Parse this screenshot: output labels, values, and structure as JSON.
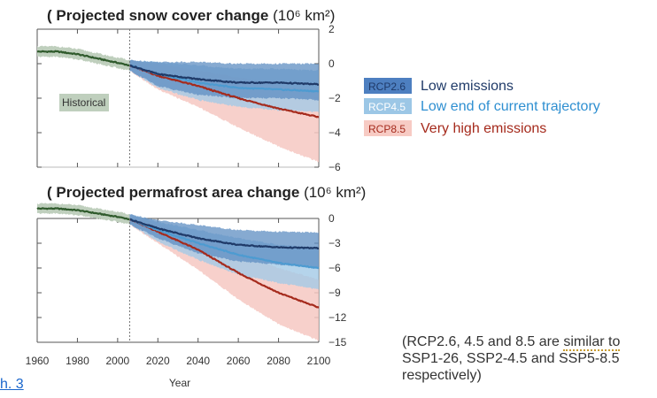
{
  "colors": {
    "rcp26": "#1f3a68",
    "rcp26_band": "#5d8ec2",
    "rcp45": "#4d9bd1",
    "rcp45_band": "#a3c9e6",
    "rcp85": "#a52a1c",
    "rcp85_band": "#f6c8c2",
    "historical": "#2f5a2c",
    "historical_band": "#bfcfbd"
  },
  "legend": [
    {
      "code": "RCP2.6",
      "label": "Low emissions",
      "code_bg": "#4d7fc0",
      "code_color": "#1f3a68",
      "label_color": "#1f3a68"
    },
    {
      "code": "RCP4.5",
      "label": "Low end of current trajectory",
      "code_bg": "#9cc7e6",
      "code_color": "#ffffff",
      "label_color": "#2e8fd1"
    },
    {
      "code": "RCP8.5",
      "label": "Very high emissions",
      "code_bg": "#f7cbc4",
      "code_color": "#a52a1c",
      "label_color": "#a52a1c"
    }
  ],
  "note": {
    "line1": "(RCP2.6, 4.5 and 8.5 are ",
    "dotted": "similar to",
    "line2": "SSP1-26, SSP2-4.5 and SSP5-8.5",
    "line3": "respectively)"
  },
  "link_text": "h. 3",
  "chart_data": [
    {
      "type": "line",
      "title": "Projected snow cover change",
      "title_prefix": "(",
      "unit": "(10⁶ km²)",
      "xlabel": "",
      "ylabel": "",
      "ylim": [
        -6,
        2
      ],
      "yticks": [
        "2",
        "0",
        "−2",
        "−4",
        "−6"
      ],
      "xlim": [
        1960,
        2100
      ],
      "historical_label": "Historical",
      "historical_end": 2006,
      "series": [
        {
          "name": "Historical",
          "x": [
            1960,
            1970,
            1980,
            1990,
            2000,
            2006
          ],
          "y": [
            0.7,
            0.7,
            0.55,
            0.3,
            0.05,
            -0.1
          ],
          "lo": [
            0.4,
            0.4,
            0.25,
            0.0,
            -0.25,
            -0.4
          ],
          "hi": [
            1.0,
            1.0,
            0.85,
            0.6,
            0.35,
            0.2
          ]
        },
        {
          "name": "RCP2.6",
          "x": [
            2006,
            2020,
            2040,
            2060,
            2080,
            2100
          ],
          "y": [
            -0.1,
            -0.6,
            -0.9,
            -1.1,
            -1.1,
            -1.2
          ],
          "lo": [
            -0.4,
            -1.3,
            -1.8,
            -2.0,
            -2.0,
            -2.1
          ],
          "hi": [
            0.2,
            0.1,
            0.1,
            0.0,
            0.0,
            0.0
          ]
        },
        {
          "name": "RCP4.5",
          "x": [
            2006,
            2020,
            2040,
            2060,
            2080,
            2100
          ],
          "y": [
            -0.1,
            -0.6,
            -1.1,
            -1.4,
            -1.5,
            -1.6
          ],
          "lo": [
            -0.4,
            -1.4,
            -2.1,
            -2.5,
            -2.7,
            -2.8
          ],
          "hi": [
            0.2,
            0.1,
            -0.1,
            -0.3,
            -0.3,
            -0.4
          ]
        },
        {
          "name": "RCP8.5",
          "x": [
            2006,
            2020,
            2040,
            2060,
            2080,
            2100
          ],
          "y": [
            -0.1,
            -0.7,
            -1.3,
            -2.0,
            -2.6,
            -3.1
          ],
          "lo": [
            -0.4,
            -1.5,
            -2.5,
            -3.7,
            -4.8,
            -5.7
          ],
          "hi": [
            0.2,
            0.0,
            -0.4,
            -0.8,
            -1.2,
            -1.6
          ]
        }
      ]
    },
    {
      "type": "line",
      "title": "Projected permafrost area change",
      "title_prefix": "(",
      "unit": "(10⁶ km²)",
      "xlabel": "Year",
      "ylabel": "",
      "ylim": [
        -15,
        0
      ],
      "yticks": [
        "0",
        "−3",
        "−6",
        "−9",
        "−12",
        "−15"
      ],
      "xticks": [
        "1960",
        "1980",
        "2000",
        "2020",
        "2040",
        "2060",
        "2080",
        "2100"
      ],
      "xlim": [
        1960,
        2100
      ],
      "historical_end": 2006,
      "series": [
        {
          "name": "Historical",
          "x": [
            1960,
            1970,
            1980,
            1990,
            2000,
            2006
          ],
          "y": [
            1.2,
            1.2,
            1.0,
            0.6,
            0.2,
            -0.1
          ],
          "lo": [
            0.6,
            0.6,
            0.4,
            0.0,
            -0.4,
            -0.7
          ],
          "hi": [
            1.8,
            1.8,
            1.6,
            1.2,
            0.8,
            0.5
          ]
        },
        {
          "name": "RCP2.6",
          "x": [
            2006,
            2020,
            2040,
            2060,
            2080,
            2100
          ],
          "y": [
            -0.1,
            -1.2,
            -2.4,
            -3.2,
            -3.5,
            -3.6
          ],
          "lo": [
            -0.7,
            -2.4,
            -4.2,
            -5.2,
            -5.6,
            -5.9
          ],
          "hi": [
            0.5,
            -0.2,
            -0.8,
            -1.4,
            -1.6,
            -1.7
          ]
        },
        {
          "name": "RCP4.5",
          "x": [
            2006,
            2020,
            2040,
            2060,
            2080,
            2100
          ],
          "y": [
            -0.1,
            -1.4,
            -3.0,
            -4.4,
            -5.4,
            -6.0
          ],
          "lo": [
            -0.7,
            -2.8,
            -5.0,
            -6.8,
            -7.8,
            -8.6
          ],
          "hi": [
            0.5,
            -0.4,
            -1.4,
            -2.4,
            -3.2,
            -3.6
          ]
        },
        {
          "name": "RCP8.5",
          "x": [
            2006,
            2020,
            2040,
            2060,
            2080,
            2100
          ],
          "y": [
            -0.1,
            -1.6,
            -3.8,
            -6.6,
            -9.0,
            -10.8
          ],
          "lo": [
            -0.7,
            -3.0,
            -6.2,
            -9.8,
            -12.8,
            -14.8
          ],
          "hi": [
            0.5,
            -0.6,
            -2.2,
            -4.2,
            -6.0,
            -7.4
          ]
        }
      ]
    }
  ]
}
